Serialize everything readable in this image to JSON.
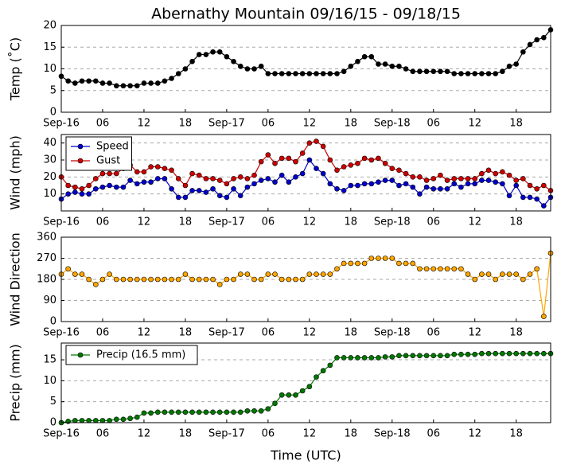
{
  "chart_data": [
    {
      "type": "line",
      "title": "Abernathy Mountain 09/16/15 - 09/18/15",
      "ylabel": "Temp (˚C)",
      "x": [
        0,
        1,
        2,
        3,
        4,
        5,
        6,
        7,
        8,
        9,
        10,
        11,
        12,
        13,
        14,
        15,
        16,
        17,
        18,
        19,
        20,
        21,
        22,
        23,
        24,
        25,
        26,
        27,
        28,
        29,
        30,
        31,
        32,
        33,
        34,
        35,
        36,
        37,
        38,
        39,
        40,
        41,
        42,
        43,
        44,
        45,
        46,
        47,
        48,
        49,
        50,
        51,
        52,
        53,
        54,
        55,
        56,
        57,
        58,
        59,
        60,
        61,
        62,
        63,
        64,
        65,
        66,
        67,
        68,
        69,
        70,
        71
      ],
      "values": [
        8.3,
        7.2,
        6.7,
        7.2,
        7.2,
        7.2,
        6.7,
        6.7,
        6.1,
        6.1,
        6.1,
        6.1,
        6.7,
        6.7,
        6.7,
        7.2,
        7.8,
        8.9,
        10,
        11.7,
        13.3,
        13.3,
        13.9,
        13.9,
        12.8,
        11.7,
        10.6,
        10,
        10,
        10.6,
        8.9,
        8.9,
        8.9,
        8.9,
        8.9,
        8.9,
        8.9,
        8.9,
        8.9,
        8.9,
        8.9,
        9.4,
        10.6,
        11.7,
        12.8,
        12.8,
        11.1,
        11.1,
        10.6,
        10.6,
        10,
        9.4,
        9.4,
        9.4,
        9.4,
        9.4,
        9.4,
        8.9,
        8.9,
        8.9,
        8.9,
        8.9,
        8.9,
        8.9,
        9.4,
        10.6,
        11.1,
        13.9,
        15.6,
        16.7,
        17.2,
        19.0
      ],
      "color": "#000000",
      "xlim": [
        0,
        71
      ],
      "xticks": [
        {
          "value": 0,
          "label": "Sep-16"
        },
        {
          "value": 6,
          "label": "06"
        },
        {
          "value": 12,
          "label": "12"
        },
        {
          "value": 18,
          "label": "18"
        },
        {
          "value": 24,
          "label": "Sep-17"
        },
        {
          "value": 30,
          "label": "06"
        },
        {
          "value": 36,
          "label": "12"
        },
        {
          "value": 42,
          "label": "18"
        },
        {
          "value": 48,
          "label": "Sep-18"
        },
        {
          "value": 54,
          "label": "06"
        },
        {
          "value": 60,
          "label": "12"
        },
        {
          "value": 66,
          "label": "18"
        }
      ],
      "ylim": [
        0,
        20
      ],
      "yticks": [
        0,
        5,
        10,
        15,
        20
      ],
      "grid": true
    },
    {
      "type": "line",
      "ylabel": "Wind (mph)",
      "x": [
        0,
        1,
        2,
        3,
        4,
        5,
        6,
        7,
        8,
        9,
        10,
        11,
        12,
        13,
        14,
        15,
        16,
        17,
        18,
        19,
        20,
        21,
        22,
        23,
        24,
        25,
        26,
        27,
        28,
        29,
        30,
        31,
        32,
        33,
        34,
        35,
        36,
        37,
        38,
        39,
        40,
        41,
        42,
        43,
        44,
        45,
        46,
        47,
        48,
        49,
        50,
        51,
        52,
        53,
        54,
        55,
        56,
        57,
        58,
        59,
        60,
        61,
        62,
        63,
        64,
        65,
        66,
        67,
        68,
        69,
        70,
        71
      ],
      "series": [
        {
          "name": "Speed",
          "color": "#0000cc",
          "values": [
            7,
            10,
            11,
            10,
            10,
            13,
            14,
            15,
            14,
            14,
            18,
            16,
            17,
            17,
            19,
            19,
            13,
            8,
            8,
            12,
            12,
            11,
            13,
            9,
            8,
            13,
            9,
            14,
            16,
            18,
            19,
            17,
            21,
            17,
            20,
            22,
            30,
            25,
            22,
            16,
            13,
            12,
            15,
            15,
            16,
            16,
            17,
            18,
            18,
            15,
            16,
            14,
            10,
            14,
            13,
            13,
            13,
            16,
            14,
            16,
            16,
            18,
            18,
            17,
            16,
            9,
            15,
            8,
            8,
            7,
            3,
            8
          ]
        },
        {
          "name": "Gust",
          "color": "#cc0000",
          "values": [
            20,
            15,
            14,
            13,
            15,
            19,
            22,
            22,
            22,
            25,
            27,
            23,
            23,
            26,
            26,
            25,
            24,
            19,
            15,
            22,
            21,
            19,
            19,
            18,
            16,
            19,
            20,
            19,
            21,
            29,
            33,
            28,
            31,
            31,
            29,
            34,
            40,
            41,
            38,
            30,
            24,
            26,
            27,
            28,
            31,
            30,
            31,
            28,
            25,
            24,
            22,
            20,
            20,
            18,
            19,
            21,
            18,
            19,
            19,
            19,
            19,
            22,
            24,
            22,
            23,
            21,
            18,
            19,
            15,
            13,
            15,
            12
          ]
        }
      ],
      "xlim": [
        0,
        71
      ],
      "xticks": [
        {
          "value": 0,
          "label": "Sep-16"
        },
        {
          "value": 6,
          "label": "06"
        },
        {
          "value": 12,
          "label": "12"
        },
        {
          "value": 18,
          "label": "18"
        },
        {
          "value": 24,
          "label": "Sep-17"
        },
        {
          "value": 30,
          "label": "06"
        },
        {
          "value": 36,
          "label": "12"
        },
        {
          "value": 42,
          "label": "18"
        },
        {
          "value": 48,
          "label": "Sep-18"
        },
        {
          "value": 54,
          "label": "06"
        },
        {
          "value": 60,
          "label": "12"
        },
        {
          "value": 66,
          "label": "18"
        }
      ],
      "ylim": [
        0,
        45
      ],
      "yticks": [
        10,
        20,
        30,
        40
      ],
      "grid": true,
      "legend": "upper left"
    },
    {
      "type": "line",
      "ylabel": "Wind Direction",
      "x": [
        0,
        1,
        2,
        3,
        4,
        5,
        6,
        7,
        8,
        9,
        10,
        11,
        12,
        13,
        14,
        15,
        16,
        17,
        18,
        19,
        20,
        21,
        22,
        23,
        24,
        25,
        26,
        27,
        28,
        29,
        30,
        31,
        32,
        33,
        34,
        35,
        36,
        37,
        38,
        39,
        40,
        41,
        42,
        43,
        44,
        45,
        46,
        47,
        48,
        49,
        50,
        51,
        52,
        53,
        54,
        55,
        56,
        57,
        58,
        59,
        60,
        61,
        62,
        63,
        64,
        65,
        66,
        67,
        68,
        69,
        70,
        71
      ],
      "values": [
        202,
        225,
        202,
        202,
        180,
        158,
        180,
        202,
        180,
        180,
        180,
        180,
        180,
        180,
        180,
        180,
        180,
        180,
        202,
        180,
        180,
        180,
        180,
        158,
        180,
        180,
        202,
        202,
        180,
        180,
        202,
        202,
        180,
        180,
        180,
        180,
        202,
        202,
        202,
        202,
        225,
        248,
        248,
        248,
        248,
        270,
        270,
        270,
        270,
        248,
        248,
        248,
        225,
        225,
        225,
        225,
        225,
        225,
        225,
        202,
        180,
        202,
        202,
        180,
        202,
        202,
        202,
        180,
        202,
        225,
        22,
        292
      ],
      "color": "#ffa500",
      "xlim": [
        0,
        71
      ],
      "xticks": [
        {
          "value": 0,
          "label": "Sep-16"
        },
        {
          "value": 6,
          "label": "06"
        },
        {
          "value": 12,
          "label": "12"
        },
        {
          "value": 18,
          "label": "18"
        },
        {
          "value": 24,
          "label": "Sep-17"
        },
        {
          "value": 30,
          "label": "06"
        },
        {
          "value": 36,
          "label": "12"
        },
        {
          "value": 42,
          "label": "18"
        },
        {
          "value": 48,
          "label": "Sep-18"
        },
        {
          "value": 54,
          "label": "06"
        },
        {
          "value": 60,
          "label": "12"
        },
        {
          "value": 66,
          "label": "18"
        }
      ],
      "ylim": [
        0,
        360
      ],
      "yticks": [
        0,
        90,
        180,
        270,
        360
      ],
      "grid": true
    },
    {
      "type": "line",
      "ylabel": "Precip (mm)",
      "xlabel": "Time (UTC)",
      "x": [
        0,
        1,
        2,
        3,
        4,
        5,
        6,
        7,
        8,
        9,
        10,
        11,
        12,
        13,
        14,
        15,
        16,
        17,
        18,
        19,
        20,
        21,
        22,
        23,
        24,
        25,
        26,
        27,
        28,
        29,
        30,
        31,
        32,
        33,
        34,
        35,
        36,
        37,
        38,
        39,
        40,
        41,
        42,
        43,
        44,
        45,
        46,
        47,
        48,
        49,
        50,
        51,
        52,
        53,
        54,
        55,
        56,
        57,
        58,
        59,
        60,
        61,
        62,
        63,
        64,
        65,
        66,
        67,
        68,
        69,
        70,
        71
      ],
      "series": [
        {
          "name": "Precip (16.5 mm)",
          "color": "#007700",
          "values": [
            0,
            0.3,
            0.5,
            0.5,
            0.5,
            0.5,
            0.5,
            0.5,
            0.8,
            0.8,
            1.0,
            1.3,
            2.3,
            2.3,
            2.5,
            2.5,
            2.5,
            2.5,
            2.5,
            2.5,
            2.5,
            2.5,
            2.5,
            2.5,
            2.5,
            2.5,
            2.5,
            2.8,
            2.8,
            2.8,
            3.3,
            4.6,
            6.6,
            6.6,
            6.6,
            7.6,
            8.6,
            10.9,
            12.4,
            13.7,
            15.5,
            15.5,
            15.5,
            15.5,
            15.5,
            15.5,
            15.5,
            15.7,
            15.7,
            16.0,
            16.0,
            16.0,
            16.0,
            16.0,
            16.0,
            16.0,
            16.0,
            16.3,
            16.3,
            16.3,
            16.3,
            16.5,
            16.5,
            16.5,
            16.5,
            16.5,
            16.5,
            16.5,
            16.5,
            16.5,
            16.5,
            16.5
          ]
        }
      ],
      "xlim": [
        0,
        71
      ],
      "xticks": [
        {
          "value": 0,
          "label": "Sep-16"
        },
        {
          "value": 6,
          "label": "06"
        },
        {
          "value": 12,
          "label": "12"
        },
        {
          "value": 18,
          "label": "18"
        },
        {
          "value": 24,
          "label": "Sep-17"
        },
        {
          "value": 30,
          "label": "06"
        },
        {
          "value": 36,
          "label": "12"
        },
        {
          "value": 42,
          "label": "18"
        },
        {
          "value": 48,
          "label": "Sep-18"
        },
        {
          "value": 54,
          "label": "06"
        },
        {
          "value": 60,
          "label": "12"
        },
        {
          "value": 66,
          "label": "18"
        }
      ],
      "ylim": [
        0,
        19
      ],
      "yticks": [
        0,
        5,
        10,
        15
      ],
      "grid": true,
      "legend": "upper left"
    }
  ]
}
